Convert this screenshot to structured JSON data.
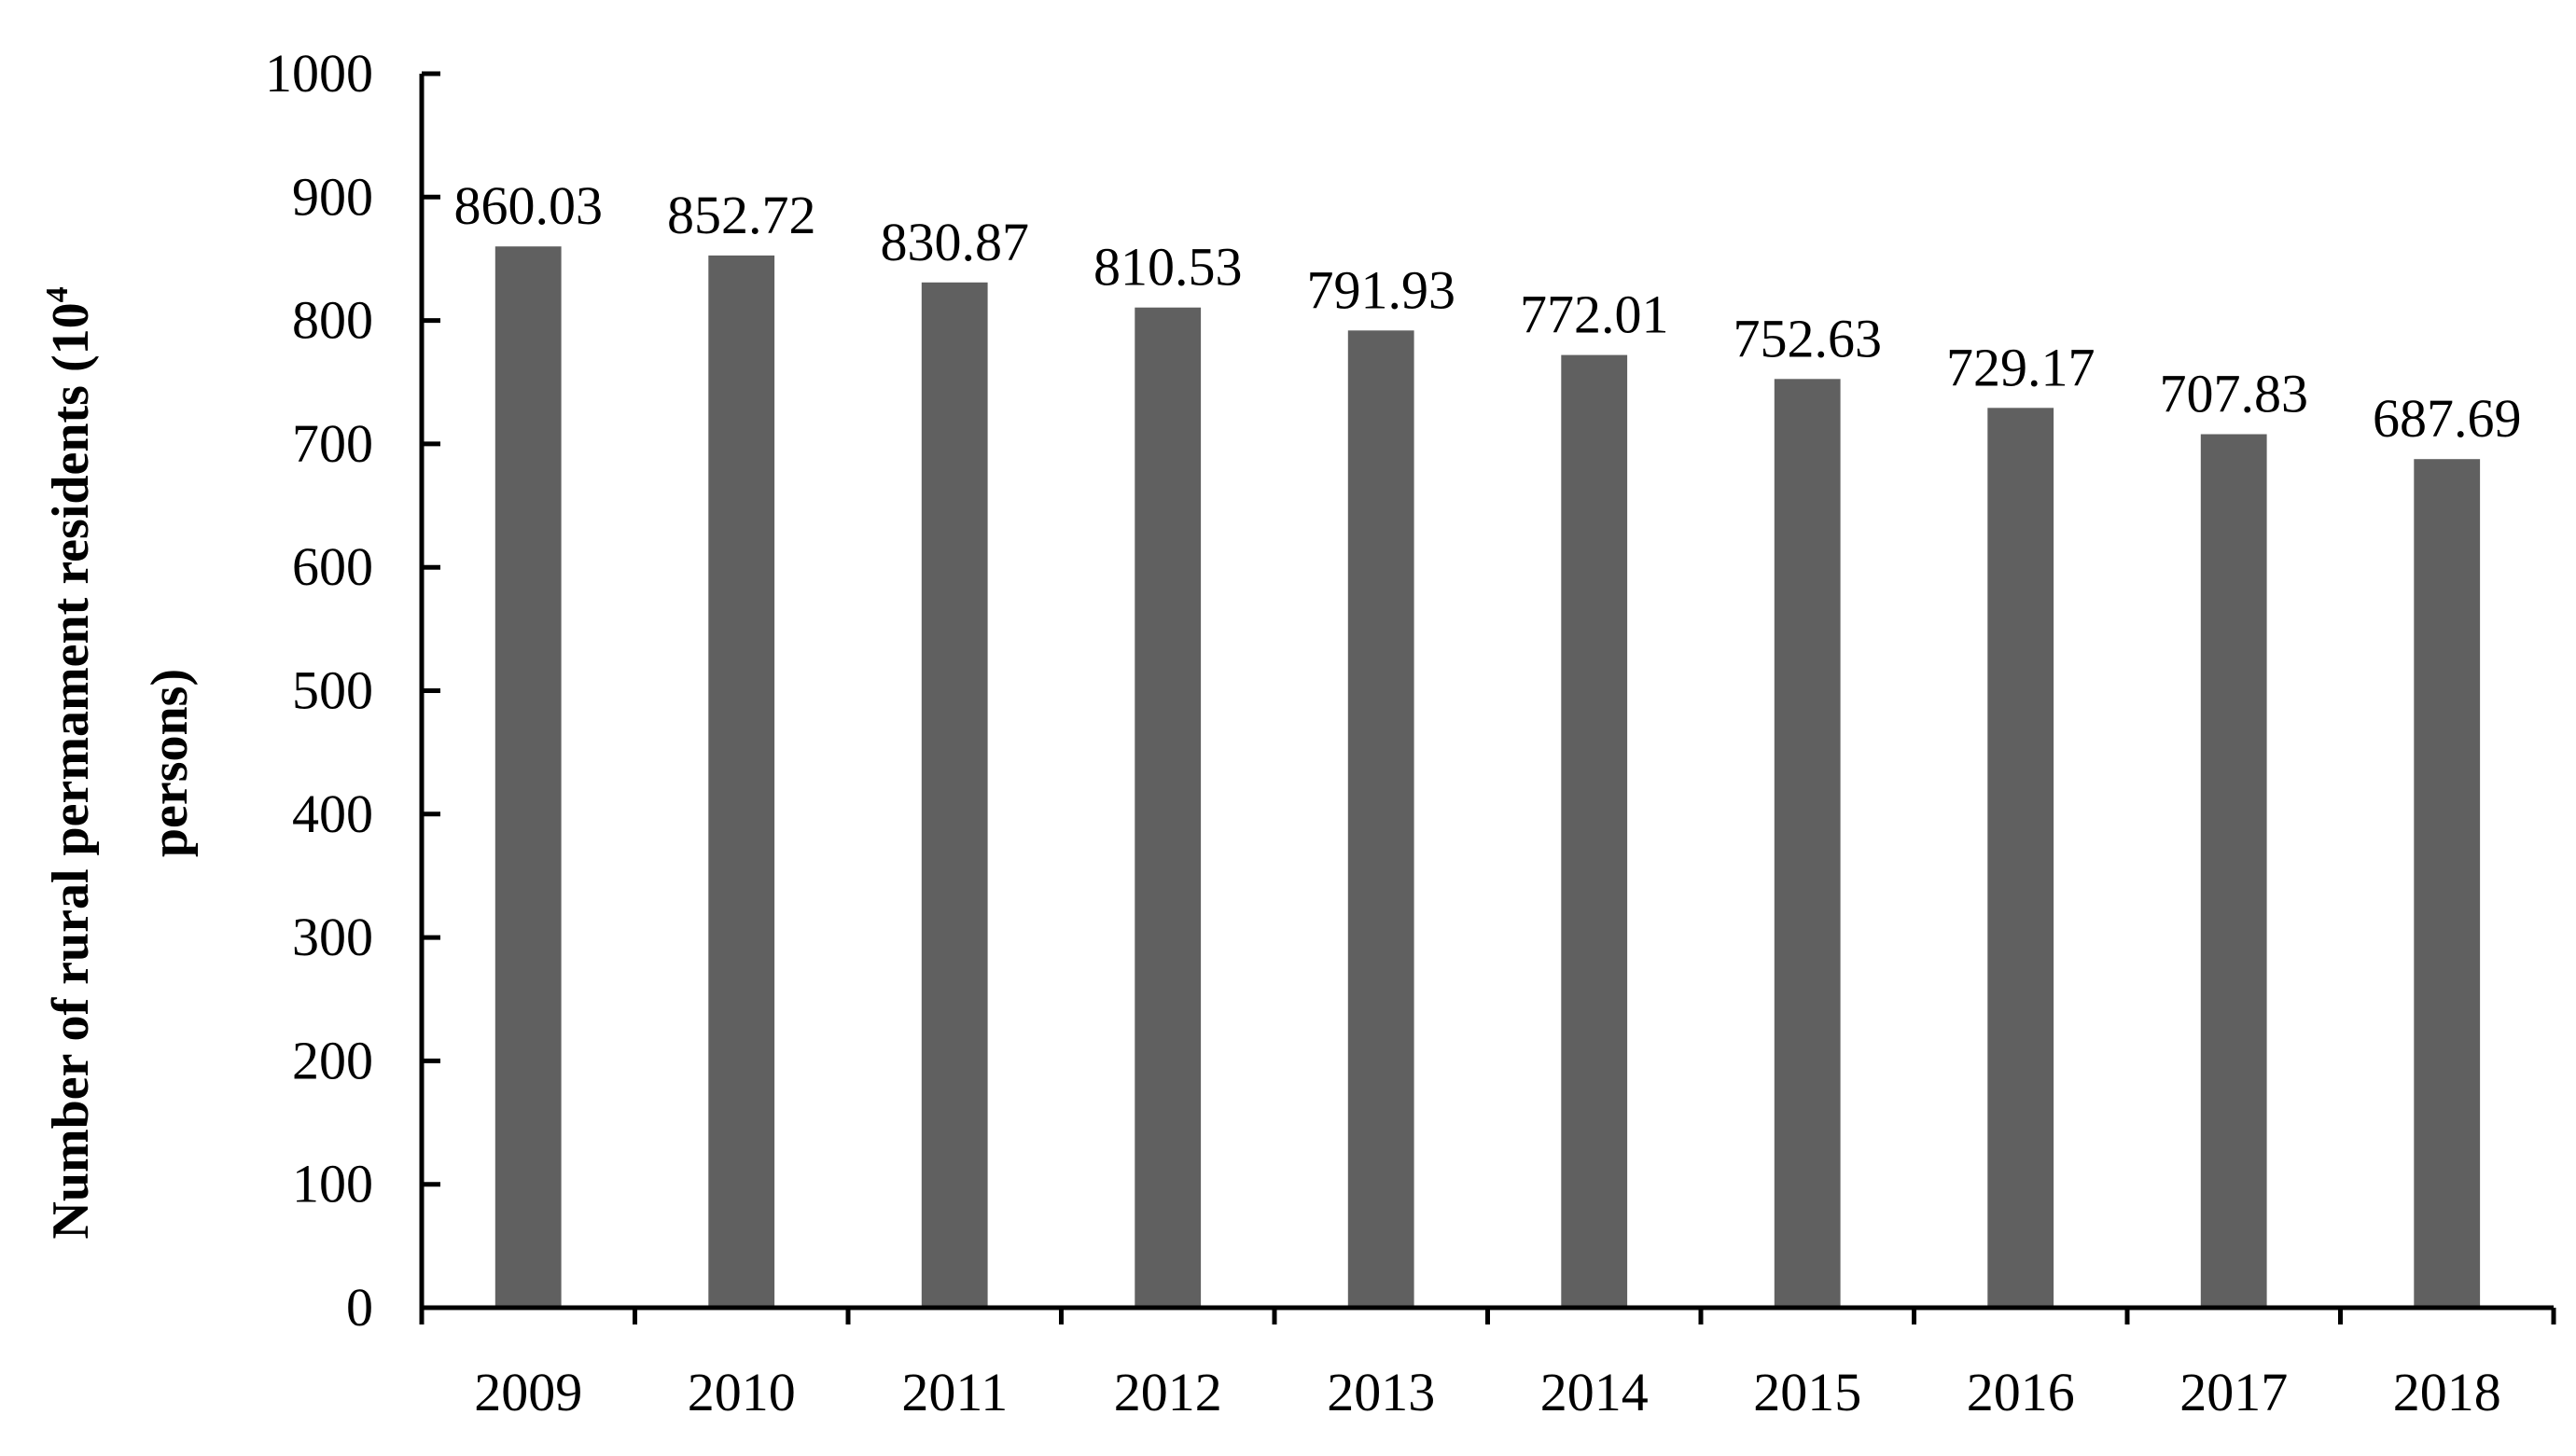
{
  "chart_data": {
    "type": "bar",
    "categories": [
      "2009",
      "2010",
      "2011",
      "2012",
      "2013",
      "2014",
      "2015",
      "2016",
      "2017",
      "2018"
    ],
    "values": [
      860.03,
      852.72,
      830.87,
      810.53,
      791.93,
      772.01,
      752.63,
      729.17,
      707.83,
      687.69
    ],
    "data_labels": [
      "860.03",
      "852.72",
      "830.87",
      "810.53",
      "791.93",
      "772.01",
      "752.63",
      "729.17",
      "707.83",
      "687.69"
    ],
    "title": "",
    "xlabel": "",
    "ylabel": {
      "line1_prefix": "Number of rural permament residents (10",
      "line1_superscript": "4",
      "line2": "persons)"
    },
    "ylim": [
      0,
      1000
    ],
    "yticks": [
      0,
      100,
      200,
      300,
      400,
      500,
      600,
      700,
      800,
      900,
      1000
    ],
    "grid": false,
    "legend": "none",
    "bar_color": "#606060"
  }
}
